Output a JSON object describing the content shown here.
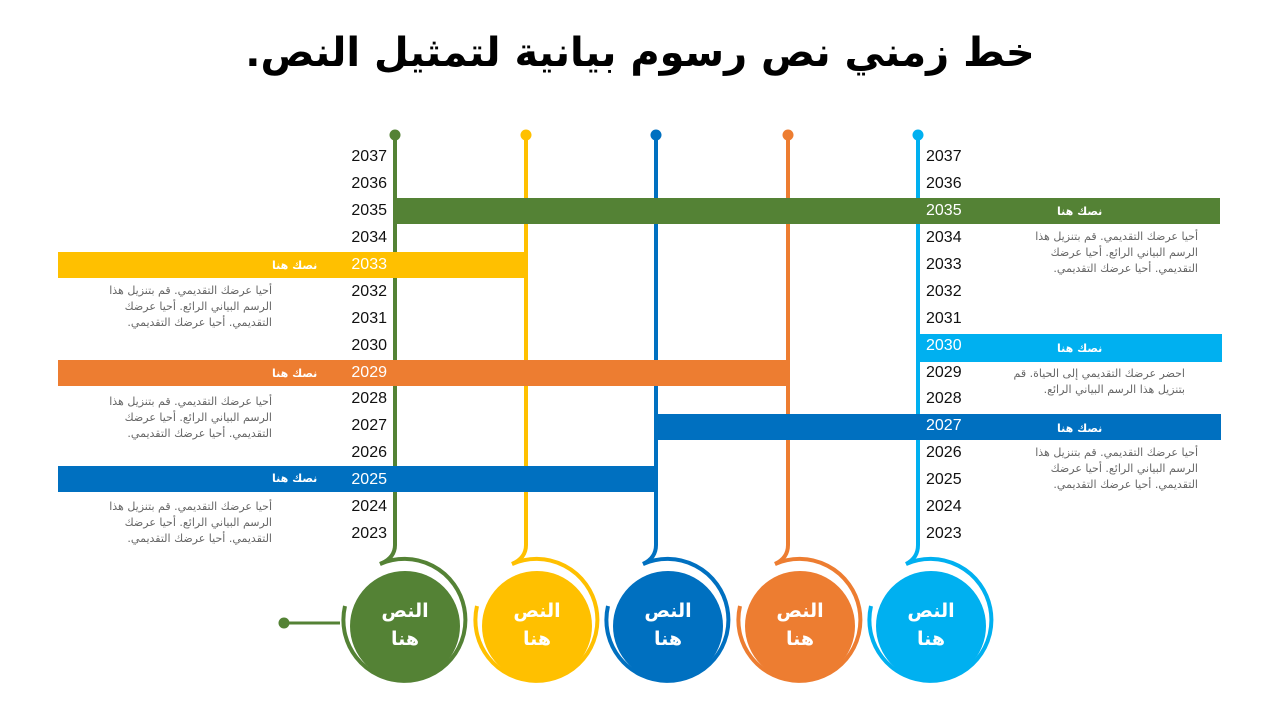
{
  "title": "خط زمني نص رسوم بيانية لتمثيل النص.",
  "colors": {
    "green": "#548235",
    "yellow": "#FFC000",
    "blue": "#0070C0",
    "orange": "#ED7D31",
    "lightblue": "#00B0F0"
  },
  "years_left": [
    "2037",
    "2036",
    "2035",
    "2034",
    "2033",
    "2032",
    "2031",
    "2030",
    "2029",
    "2028",
    "2027",
    "2026",
    "2025",
    "2024",
    "2023"
  ],
  "years_right": [
    "2037",
    "2036",
    "2035",
    "2034",
    "2033",
    "2032",
    "2031",
    "2030",
    "2029",
    "2028",
    "2027",
    "2026",
    "2025",
    "2024",
    "2023"
  ],
  "bars": [
    {
      "color": "green",
      "year": "2035",
      "label": "نصك هنا",
      "description": "أحيا عرضك التقديمي. قم بتنزيل هذا الرسم البياني الرائع. أحيا عرضك التقديمي. أحيا عرضك التقديمي."
    },
    {
      "color": "yellow",
      "year": "2033",
      "label": "نصك هنا",
      "description": "أحيا عرضك التقديمي. قم بتنزيل هذا الرسم البياني الرائع. أحيا عرضك التقديمي. أحيا عرضك التقديمي."
    },
    {
      "color": "lightblue",
      "year": "2030",
      "label": "نصك هنا",
      "description": "احضر عرضك التقديمي إلى الحياة. قم بتنزيل هذا الرسم البياني الرائع."
    },
    {
      "color": "orange",
      "year": "2029",
      "label": "نصك هنا",
      "description": "أحيا عرضك التقديمي. قم بتنزيل هذا الرسم البياني الرائع. أحيا عرضك التقديمي. أحيا عرضك التقديمي."
    },
    {
      "color": "blue",
      "year": "2027",
      "label": "نصك هنا",
      "description": "أحيا عرضك التقديمي. قم بتنزيل هذا الرسم البياني الرائع. أحيا عرضك التقديمي. أحيا عرضك التقديمي."
    },
    {
      "color": "blue",
      "year": "2025",
      "label": "نصك هنا",
      "description": "أحيا عرضك التقديمي. قم بتنزيل هذا الرسم البياني الرائع. أحيا عرضك التقديمي. أحيا عرضك التقديمي."
    }
  ],
  "circles": [
    {
      "color": "green",
      "line1": "النص",
      "line2": "هنا"
    },
    {
      "color": "yellow",
      "line1": "النص",
      "line2": "هنا"
    },
    {
      "color": "blue",
      "line1": "النص",
      "line2": "هنا"
    },
    {
      "color": "orange",
      "line1": "النص",
      "line2": "هنا"
    },
    {
      "color": "lightblue",
      "line1": "النص",
      "line2": "هنا"
    }
  ]
}
